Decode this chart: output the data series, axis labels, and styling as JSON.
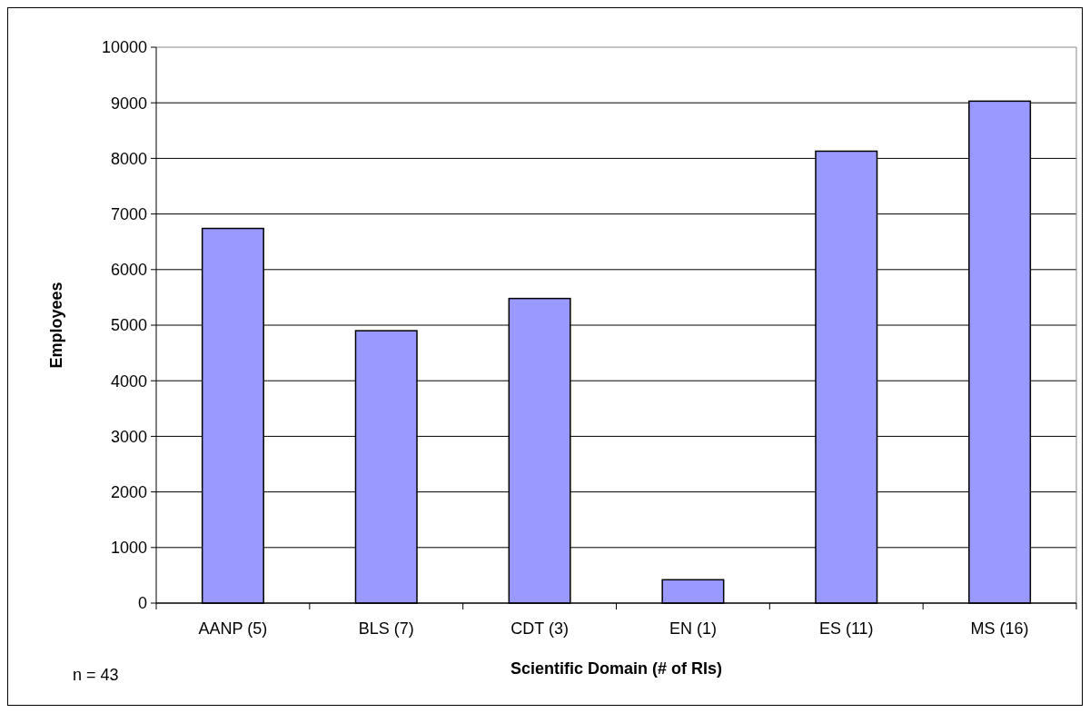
{
  "chart_data": {
    "type": "bar",
    "xlabel": "Scientific Domain (# of RIs)",
    "ylabel": "Employees",
    "categories": [
      "AANP (5)",
      "BLS (7)",
      "CDT (3)",
      "EN (1)",
      "ES (11)",
      "MS (16)"
    ],
    "values": [
      6740,
      4900,
      5480,
      420,
      8130,
      9030
    ],
    "color": "#9999ff",
    "ylim": [
      0,
      10000
    ],
    "yticks": [
      0,
      1000,
      2000,
      3000,
      4000,
      5000,
      6000,
      7000,
      8000,
      9000,
      10000
    ],
    "grid": "y",
    "annotations": [
      "n = 43"
    ]
  }
}
